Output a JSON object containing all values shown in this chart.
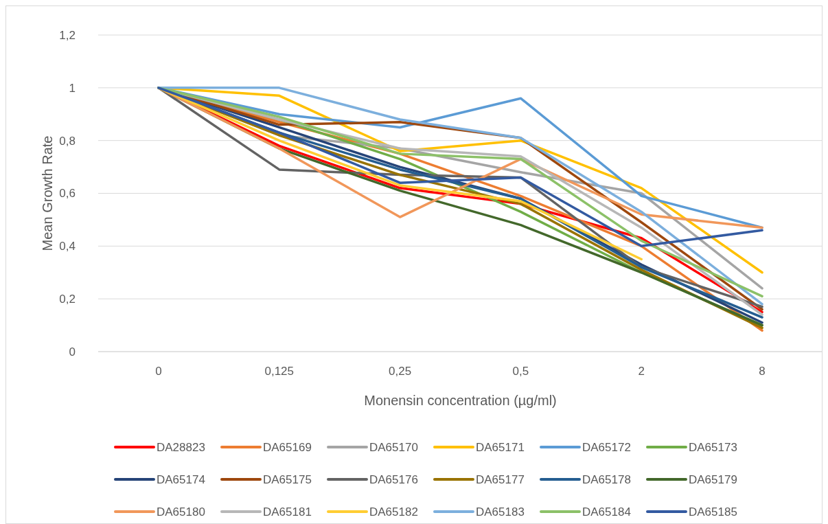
{
  "chart_data": {
    "type": "line",
    "xlabel": "Monensin concentration (µg/ml)",
    "ylabel": "Mean Growth Rate",
    "categories": [
      "0",
      "0,125",
      "0,25",
      "0,5",
      "2",
      "8"
    ],
    "ylim": [
      0,
      1.2
    ],
    "yticks": [
      {
        "value": 0,
        "label": "0"
      },
      {
        "value": 0.2,
        "label": "0,2"
      },
      {
        "value": 0.4,
        "label": "0,4"
      },
      {
        "value": 0.6,
        "label": "0,6"
      },
      {
        "value": 0.8,
        "label": "0,8"
      },
      {
        "value": 1,
        "label": "1"
      },
      {
        "value": 1.2,
        "label": "1,2"
      }
    ],
    "grid": "y",
    "legend": "bottom",
    "marker": "none",
    "line_style": "solid",
    "series": [
      {
        "name": "DA28823",
        "color": "#ff0000",
        "values": [
          1,
          0.78,
          0.62,
          0.56,
          0.43,
          0.15
        ]
      },
      {
        "name": "DA65169",
        "color": "#ed7d31",
        "values": [
          1,
          0.87,
          0.75,
          0.59,
          0.4,
          0.08
        ]
      },
      {
        "name": "DA65170",
        "color": "#a5a5a5",
        "values": [
          1,
          0.82,
          0.77,
          0.68,
          0.6,
          0.24
        ]
      },
      {
        "name": "DA65171",
        "color": "#ffc000",
        "values": [
          1,
          0.97,
          0.76,
          0.8,
          0.62,
          0.3
        ]
      },
      {
        "name": "DA65172",
        "color": "#5b9bd5",
        "values": [
          1,
          0.9,
          0.85,
          0.96,
          0.59,
          0.47
        ]
      },
      {
        "name": "DA65173",
        "color": "#70ad47",
        "values": [
          1,
          0.88,
          0.73,
          0.53,
          0.3,
          0.1
        ]
      },
      {
        "name": "DA65174",
        "color": "#264478",
        "values": [
          1,
          0.85,
          0.7,
          0.58,
          0.33,
          0.11
        ]
      },
      {
        "name": "DA65175",
        "color": "#9e480e",
        "values": [
          1,
          0.86,
          0.87,
          0.81,
          0.49,
          0.16
        ]
      },
      {
        "name": "DA65176",
        "color": "#636363",
        "values": [
          1,
          0.69,
          0.67,
          0.66,
          0.32,
          0.17
        ]
      },
      {
        "name": "DA65177",
        "color": "#997300",
        "values": [
          1,
          0.82,
          0.67,
          0.56,
          0.31,
          0.09
        ]
      },
      {
        "name": "DA65178",
        "color": "#255e91",
        "values": [
          1,
          0.83,
          0.69,
          0.58,
          0.32,
          0.13
        ]
      },
      {
        "name": "DA65179",
        "color": "#43682b",
        "values": [
          1,
          0.77,
          0.61,
          0.48,
          0.3,
          0.1
        ]
      },
      {
        "name": "DA65180",
        "color": "#f1975a",
        "values": [
          1,
          0.77,
          0.51,
          0.73,
          0.52,
          0.47
        ]
      },
      {
        "name": "DA65181",
        "color": "#b7b7b7",
        "values": [
          1,
          0.88,
          0.77,
          0.74,
          0.47,
          0.14
        ]
      },
      {
        "name": "DA65182",
        "color": "#ffcd33",
        "values": [
          1,
          0.8,
          0.63,
          0.57,
          0.35,
          null
        ]
      },
      {
        "name": "DA65183",
        "color": "#7cafdd",
        "values": [
          1,
          1,
          0.88,
          0.81,
          0.53,
          0.18
        ]
      },
      {
        "name": "DA65184",
        "color": "#8cc168",
        "values": [
          1,
          0.89,
          0.75,
          0.73,
          0.42,
          0.21
        ]
      },
      {
        "name": "DA65185",
        "color": "#335aa1",
        "values": [
          1,
          0.83,
          0.64,
          0.66,
          0.4,
          0.46
        ]
      }
    ]
  }
}
